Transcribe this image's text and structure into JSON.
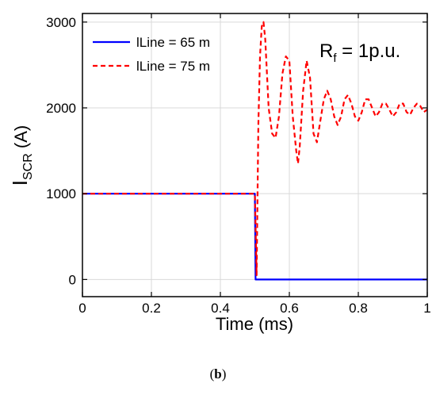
{
  "chart_data": {
    "type": "line",
    "xlabel": "Time (ms)",
    "ylabel": {
      "main": "I",
      "sub": "SCR",
      "rest": " (A)"
    },
    "xlim": [
      0,
      1
    ],
    "ylim": [
      -200,
      3100
    ],
    "xticks": [
      0,
      0.2,
      0.4,
      0.6,
      0.8,
      1
    ],
    "xtick_labels": [
      "0",
      "0.2",
      "0.4",
      "0.6",
      "0.8",
      "1"
    ],
    "yticks": [
      0,
      1000,
      2000,
      3000
    ],
    "ytick_labels": [
      "0",
      "1000",
      "2000",
      "3000"
    ],
    "grid": true,
    "legend_position": "top-left",
    "annotation": {
      "main": "R",
      "sub": "f",
      "rest": " = 1p.u.",
      "position": "top-right"
    },
    "series": [
      {
        "name": "lLine = 65 m",
        "color": "#0000ff",
        "style": "solid",
        "x": [
          0,
          0.5,
          0.502,
          1.0
        ],
        "y": [
          1000,
          1000,
          0,
          0
        ]
      },
      {
        "name": "lLine = 75 m",
        "color": "#ff0000",
        "style": "dashed",
        "x": [
          0,
          0.5,
          0.505,
          0.51,
          0.515,
          0.52,
          0.525,
          0.53,
          0.54,
          0.55,
          0.56,
          0.57,
          0.58,
          0.59,
          0.6,
          0.61,
          0.62,
          0.625,
          0.63,
          0.64,
          0.65,
          0.66,
          0.67,
          0.68,
          0.69,
          0.7,
          0.71,
          0.72,
          0.73,
          0.74,
          0.75,
          0.76,
          0.77,
          0.78,
          0.79,
          0.8,
          0.81,
          0.82,
          0.83,
          0.84,
          0.85,
          0.86,
          0.87,
          0.88,
          0.89,
          0.9,
          0.91,
          0.92,
          0.93,
          0.94,
          0.95,
          0.96,
          0.97,
          0.98,
          0.99,
          1.0
        ],
        "y": [
          1000,
          1000,
          50,
          1800,
          2600,
          2950,
          3000,
          2800,
          2000,
          1700,
          1650,
          1900,
          2400,
          2600,
          2550,
          1900,
          1500,
          1350,
          1550,
          2200,
          2550,
          2350,
          1700,
          1600,
          1850,
          2100,
          2200,
          2100,
          1900,
          1800,
          1900,
          2100,
          2150,
          2050,
          1900,
          1850,
          1950,
          2100,
          2100,
          2000,
          1900,
          1950,
          2050,
          2050,
          1980,
          1900,
          1950,
          2050,
          2050,
          1950,
          1920,
          2000,
          2050,
          2020,
          1950,
          1980
        ]
      }
    ]
  },
  "caption": {
    "open": "(",
    "bold": "b",
    "close": ")"
  }
}
